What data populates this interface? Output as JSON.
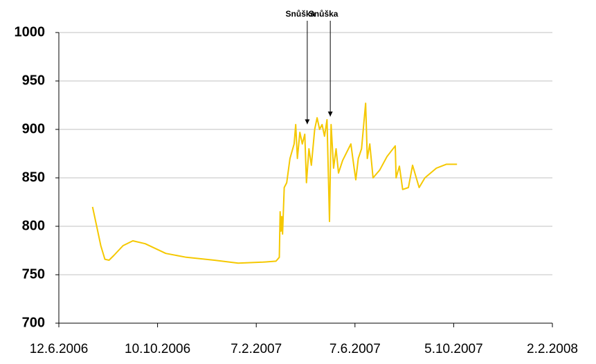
{
  "chart_data": {
    "type": "line",
    "x": [
      "2006-07-23",
      "2006-07-28",
      "2006-08-02",
      "2006-08-07",
      "2006-08-12",
      "2006-08-18",
      "2006-08-29",
      "2006-09-10",
      "2006-09-25",
      "2006-10-20",
      "2006-11-14",
      "2006-12-18",
      "2007-01-16",
      "2007-02-15",
      "2007-03-03",
      "2007-03-07",
      "2007-03-08",
      "2007-03-09",
      "2007-03-10",
      "2007-03-11",
      "2007-03-13",
      "2007-03-16",
      "2007-03-20",
      "2007-03-25",
      "2007-03-27",
      "2007-03-29",
      "2007-04-01",
      "2007-04-04",
      "2007-04-07",
      "2007-04-09",
      "2007-04-12",
      "2007-04-15",
      "2007-04-19",
      "2007-04-22",
      "2007-04-25",
      "2007-04-28",
      "2007-05-01",
      "2007-05-04",
      "2007-05-07",
      "2007-05-09",
      "2007-05-12",
      "2007-05-15",
      "2007-05-18",
      "2007-05-23",
      "2007-06-02",
      "2007-06-06",
      "2007-06-08",
      "2007-06-11",
      "2007-06-15",
      "2007-06-20",
      "2007-06-22",
      "2007-06-25",
      "2007-06-29",
      "2007-07-07",
      "2007-07-16",
      "2007-07-26",
      "2007-07-27",
      "2007-07-31",
      "2007-08-04",
      "2007-08-11",
      "2007-08-16",
      "2007-08-24",
      "2007-08-31",
      "2007-09-14",
      "2007-09-26",
      "2007-10-09"
    ],
    "series": [
      {
        "color": "#f5c800",
        "values": [
          820,
          800,
          780,
          766,
          765,
          770,
          780,
          785,
          782,
          772,
          768,
          765,
          762,
          763,
          764,
          768,
          815,
          795,
          810,
          792,
          840,
          845,
          870,
          885,
          905,
          870,
          897,
          885,
          895,
          845,
          880,
          863,
          900,
          912,
          900,
          905,
          893,
          910,
          805,
          905,
          860,
          880,
          855,
          868,
          885,
          860,
          848,
          870,
          880,
          927,
          870,
          885,
          850,
          858,
          872,
          883,
          850,
          862,
          838,
          840,
          863,
          840,
          850,
          860,
          864,
          864
        ]
      }
    ],
    "xlim": [
      "2006-06-12",
      "2008-02-02"
    ],
    "xticks": [
      {
        "value": "2006-06-12",
        "label": "12.6.2006"
      },
      {
        "value": "2006-10-10",
        "label": "10.10.2006"
      },
      {
        "value": "2007-02-07",
        "label": "7.2.2007"
      },
      {
        "value": "2007-06-07",
        "label": "7.6.2007"
      },
      {
        "value": "2007-10-05",
        "label": "5.10.2007"
      },
      {
        "value": "2008-02-02",
        "label": "2.2.2008"
      }
    ],
    "ylim": [
      700,
      1000
    ],
    "yticks": [
      700,
      750,
      800,
      850,
      900,
      950,
      1000
    ],
    "grid": true,
    "annotations": [
      {
        "text": "Snůška",
        "x": "2007-04-10",
        "y": 904
      },
      {
        "text": "Snůška",
        "x": "2007-05-08",
        "y": 912
      }
    ]
  }
}
